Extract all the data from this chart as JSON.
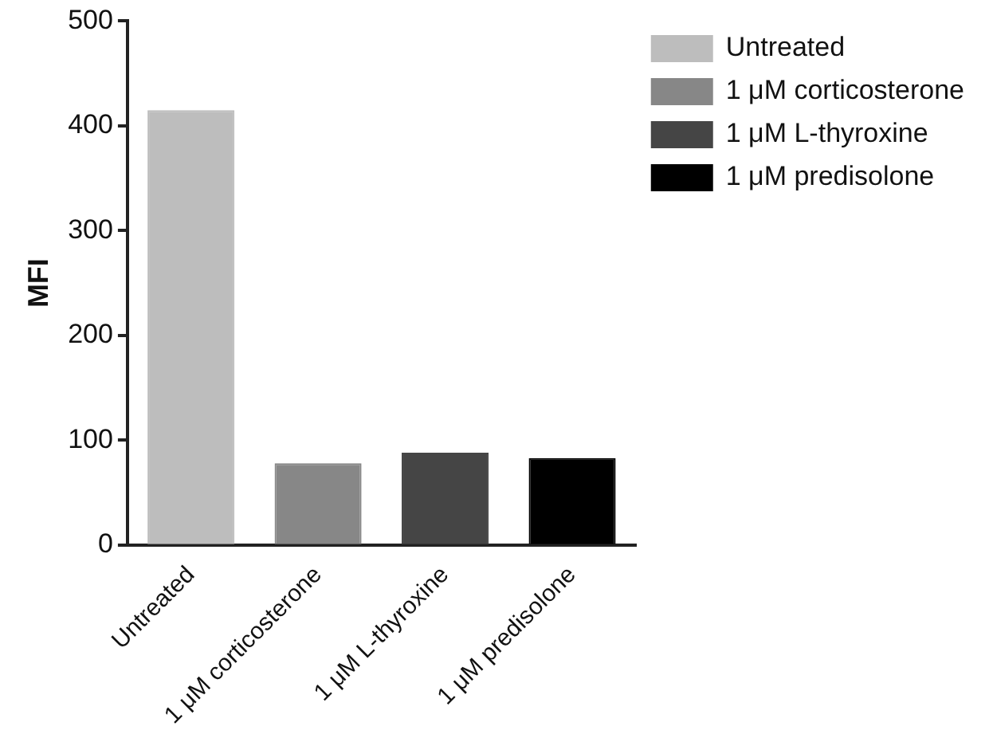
{
  "chart_data": {
    "type": "bar",
    "ylabel": "MFI",
    "categories": [
      "Untreated",
      "1 μM corticosterone",
      "1 μM L-thyroxine",
      "1 μM predisolone"
    ],
    "series": [
      {
        "name": "Untreated",
        "color": "#bdbdbd",
        "values": [
          415,
          null,
          null,
          null
        ]
      },
      {
        "name": "1 μM corticosterone",
        "color": "#878787",
        "values": [
          null,
          78,
          null,
          null
        ]
      },
      {
        "name": "1 μM L-thyroxine",
        "color": "#454545",
        "values": [
          null,
          null,
          88,
          null
        ]
      },
      {
        "name": "1 μM predisolone",
        "color": "#000000",
        "values": [
          null,
          null,
          null,
          83
        ]
      }
    ],
    "ylim": [
      0,
      500
    ],
    "yticks": [
      0,
      100,
      200,
      300,
      400,
      500
    ],
    "grid": false,
    "legend": "top right"
  }
}
